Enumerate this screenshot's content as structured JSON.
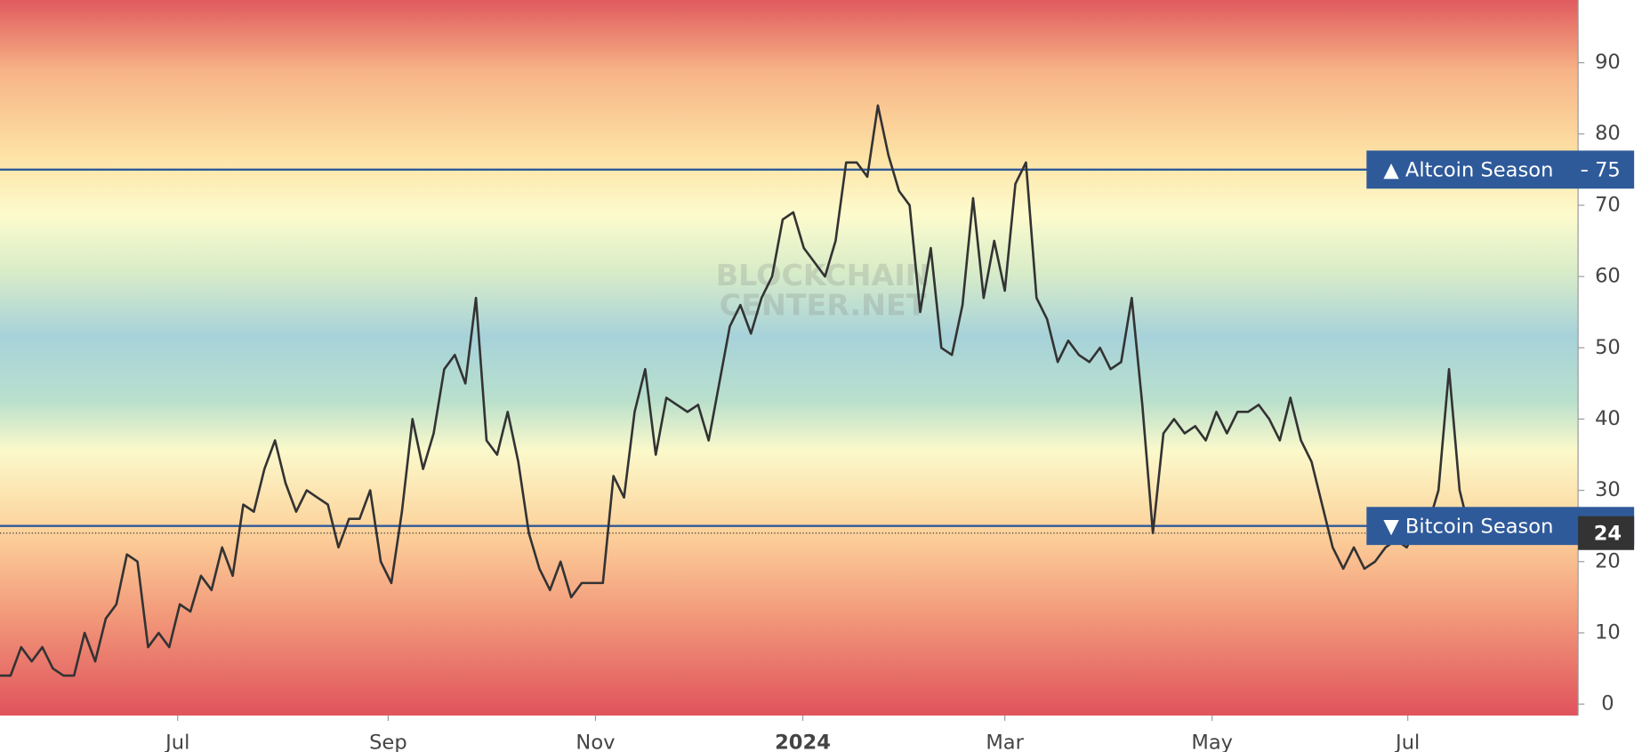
{
  "chart_data": {
    "type": "line",
    "watermark": [
      "BLOCKCHAIN",
      "CENTER.NET"
    ],
    "values": [
      4,
      4,
      8,
      6,
      8,
      5,
      4,
      4,
      10,
      6,
      12,
      14,
      21,
      20,
      8,
      10,
      8,
      14,
      13,
      18,
      16,
      22,
      18,
      28,
      27,
      33,
      37,
      31,
      27,
      30,
      29,
      28,
      22,
      26,
      26,
      30,
      20,
      17,
      27,
      40,
      33,
      38,
      47,
      49,
      45,
      57,
      37,
      35,
      41,
      34,
      24,
      19,
      16,
      20,
      15,
      17,
      17,
      17,
      32,
      29,
      41,
      47,
      35,
      43,
      42,
      41,
      42,
      37,
      45,
      53,
      56,
      52,
      57,
      60,
      68,
      69,
      64,
      62,
      60,
      65,
      76,
      76,
      74,
      84,
      77,
      72,
      70,
      55,
      64,
      50,
      49,
      56,
      71,
      57,
      65,
      58,
      73,
      76,
      57,
      54,
      48,
      51,
      49,
      48,
      50,
      47,
      48,
      57,
      42,
      24,
      38,
      40,
      38,
      39,
      37,
      41,
      38,
      41,
      41,
      42,
      40,
      37,
      43,
      37,
      34,
      28,
      22,
      19,
      22,
      19,
      20,
      22,
      23,
      22,
      25,
      25,
      30,
      47,
      30,
      24
    ],
    "color": "#333333",
    "xlim": [
      0,
      149.2
    ],
    "xticks": [
      {
        "value": 16.8,
        "label": "Jul"
      },
      {
        "value": 36.7,
        "label": "Sep"
      },
      {
        "value": 56.3,
        "label": "Nov"
      },
      {
        "value": 75.9,
        "label": "2024"
      },
      {
        "value": 95.0,
        "label": "Mar"
      },
      {
        "value": 114.6,
        "label": "May"
      },
      {
        "value": 133.1,
        "label": "Jul"
      }
    ],
    "ylim": [
      -1.6,
      98.8
    ],
    "yticks": [
      0,
      10,
      20,
      30,
      40,
      50,
      60,
      70,
      80,
      90
    ],
    "reference_lines": [
      {
        "value": 75,
        "label": "▲ Altcoin Season",
        "color": "#2f5a9a"
      },
      {
        "value": 25,
        "label": "▼ Bitcoin Season",
        "color": "#2f5a9a"
      }
    ]
  }
}
